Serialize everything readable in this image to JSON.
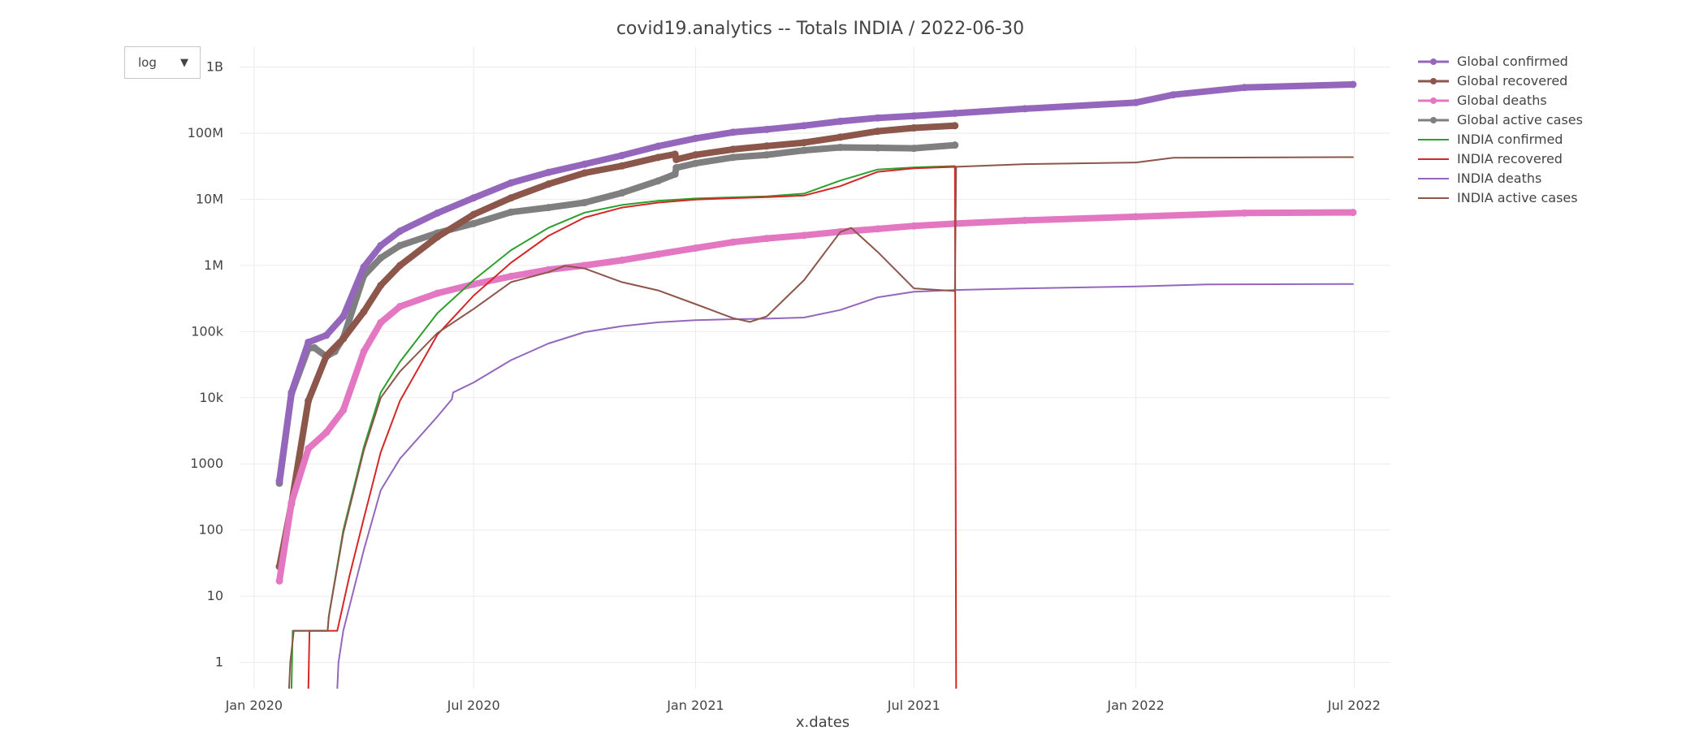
{
  "scale_selector": {
    "value": "log",
    "arrow": "▼"
  },
  "chart_data": {
    "type": "line",
    "title": "covid19.analytics -- Totals  INDIA  /  2022-06-30",
    "xlabel": "x.dates",
    "ylabel": "",
    "y_scale": "log",
    "ylim": [
      0.4,
      2000000000
    ],
    "xlim": [
      "2019-12-20",
      "2022-07-31"
    ],
    "x_ticks": [
      {
        "date": "2020-01-01",
        "label": "Jan 2020"
      },
      {
        "date": "2020-07-01",
        "label": "Jul 2020"
      },
      {
        "date": "2021-01-01",
        "label": "Jan 2021"
      },
      {
        "date": "2021-07-01",
        "label": "Jul 2021"
      },
      {
        "date": "2022-01-01",
        "label": "Jan 2022"
      },
      {
        "date": "2022-07-01",
        "label": "Jul 2022"
      }
    ],
    "y_ticks": [
      {
        "value": 1,
        "label": "1"
      },
      {
        "value": 10,
        "label": "10"
      },
      {
        "value": 100,
        "label": "100"
      },
      {
        "value": 1000,
        "label": "1000"
      },
      {
        "value": 10000,
        "label": "10k"
      },
      {
        "value": 100000,
        "label": "100k"
      },
      {
        "value": 1000000,
        "label": "1M"
      },
      {
        "value": 10000000,
        "label": "10M"
      },
      {
        "value": 100000000,
        "label": "100M"
      },
      {
        "value": 1000000000,
        "label": "1B"
      }
    ],
    "grid": true,
    "legend_position": "top-right",
    "series": [
      {
        "name": "Global confirmed",
        "color": "#9467bd",
        "mode": "lines+markers",
        "points": [
          [
            "2020-01-22",
            555
          ],
          [
            "2020-02-01",
            12000
          ],
          [
            "2020-02-15",
            69000
          ],
          [
            "2020-03-01",
            88000
          ],
          [
            "2020-03-15",
            170000
          ],
          [
            "2020-04-01",
            950000
          ],
          [
            "2020-04-15",
            2000000
          ],
          [
            "2020-05-01",
            3300000
          ],
          [
            "2020-06-01",
            6200000
          ],
          [
            "2020-07-01",
            10500000
          ],
          [
            "2020-08-01",
            17700000
          ],
          [
            "2020-09-01",
            25500000
          ],
          [
            "2020-10-01",
            34000000
          ],
          [
            "2020-11-01",
            46000000
          ],
          [
            "2020-12-01",
            63500000
          ],
          [
            "2021-01-01",
            83500000
          ],
          [
            "2021-02-01",
            103000000
          ],
          [
            "2021-03-01",
            114000000
          ],
          [
            "2021-04-01",
            130000000
          ],
          [
            "2021-05-01",
            151000000
          ],
          [
            "2021-06-01",
            170000000
          ],
          [
            "2021-07-01",
            182000000
          ],
          [
            "2021-08-04",
            200000000
          ],
          [
            "2021-10-01",
            234000000
          ],
          [
            "2022-01-01",
            290000000
          ],
          [
            "2022-02-01",
            380000000
          ],
          [
            "2022-04-01",
            490000000
          ],
          [
            "2022-06-30",
            545000000
          ]
        ]
      },
      {
        "name": "Global recovered",
        "color": "#8c564b",
        "mode": "lines+markers",
        "points": [
          [
            "2020-01-22",
            28
          ],
          [
            "2020-02-01",
            250
          ],
          [
            "2020-02-15",
            9000
          ],
          [
            "2020-03-01",
            43000
          ],
          [
            "2020-03-15",
            78000
          ],
          [
            "2020-04-01",
            200000
          ],
          [
            "2020-04-15",
            500000
          ],
          [
            "2020-05-01",
            1000000
          ],
          [
            "2020-06-01",
            2700000
          ],
          [
            "2020-07-01",
            5900000
          ],
          [
            "2020-08-01",
            10500000
          ],
          [
            "2020-09-01",
            17000000
          ],
          [
            "2020-10-01",
            25000000
          ],
          [
            "2020-11-01",
            32000000
          ],
          [
            "2020-12-01",
            43000000
          ],
          [
            "2020-12-15",
            48000000
          ],
          [
            "2020-12-16",
            40000000
          ],
          [
            "2021-01-01",
            47000000
          ],
          [
            "2021-02-01",
            57000000
          ],
          [
            "2021-03-01",
            64000000
          ],
          [
            "2021-04-01",
            72000000
          ],
          [
            "2021-05-01",
            87000000
          ],
          [
            "2021-06-01",
            107000000
          ],
          [
            "2021-07-01",
            120000000
          ],
          [
            "2021-08-04",
            130000000
          ]
        ]
      },
      {
        "name": "Global deaths",
        "color": "#e377c2",
        "mode": "lines+markers",
        "points": [
          [
            "2020-01-22",
            17
          ],
          [
            "2020-02-01",
            260
          ],
          [
            "2020-02-15",
            1700
          ],
          [
            "2020-03-01",
            3000
          ],
          [
            "2020-03-15",
            6500
          ],
          [
            "2020-04-01",
            50000
          ],
          [
            "2020-04-15",
            137000
          ],
          [
            "2020-05-01",
            240000
          ],
          [
            "2020-06-01",
            380000
          ],
          [
            "2020-07-01",
            520000
          ],
          [
            "2020-08-01",
            685000
          ],
          [
            "2020-09-01",
            860000
          ],
          [
            "2020-10-01",
            1000000
          ],
          [
            "2020-11-01",
            1200000
          ],
          [
            "2020-12-01",
            1480000
          ],
          [
            "2021-01-01",
            1830000
          ],
          [
            "2021-02-01",
            2250000
          ],
          [
            "2021-03-01",
            2560000
          ],
          [
            "2021-04-01",
            2850000
          ],
          [
            "2021-05-01",
            3230000
          ],
          [
            "2021-06-01",
            3570000
          ],
          [
            "2021-07-01",
            3960000
          ],
          [
            "2021-08-04",
            4280000
          ],
          [
            "2021-10-01",
            4800000
          ],
          [
            "2022-01-01",
            5450000
          ],
          [
            "2022-04-01",
            6200000
          ],
          [
            "2022-06-30",
            6330000
          ]
        ]
      },
      {
        "name": "Global active cases",
        "color": "#7f7f7f",
        "mode": "lines+markers",
        "points": [
          [
            "2020-01-22",
            510
          ],
          [
            "2020-02-01",
            11500
          ],
          [
            "2020-02-15",
            56000
          ],
          [
            "2020-02-20",
            57000
          ],
          [
            "2020-03-01",
            42000
          ],
          [
            "2020-03-08",
            50000
          ],
          [
            "2020-03-15",
            80000
          ],
          [
            "2020-04-01",
            700000
          ],
          [
            "2020-04-15",
            1300000
          ],
          [
            "2020-05-01",
            2000000
          ],
          [
            "2020-06-01",
            3100000
          ],
          [
            "2020-07-01",
            4300000
          ],
          [
            "2020-08-01",
            6400000
          ],
          [
            "2020-09-01",
            7500000
          ],
          [
            "2020-10-01",
            8900000
          ],
          [
            "2020-11-01",
            12500000
          ],
          [
            "2020-12-01",
            19000000
          ],
          [
            "2020-12-15",
            24000000
          ],
          [
            "2020-12-16",
            30000000
          ],
          [
            "2021-01-01",
            35000000
          ],
          [
            "2021-02-01",
            43000000
          ],
          [
            "2021-03-01",
            47000000
          ],
          [
            "2021-04-01",
            55000000
          ],
          [
            "2021-05-01",
            61000000
          ],
          [
            "2021-06-01",
            60000000
          ],
          [
            "2021-07-01",
            59000000
          ],
          [
            "2021-08-04",
            66000000
          ]
        ]
      },
      {
        "name": "INDIA confirmed",
        "color": "#2ca02c",
        "mode": "lines",
        "points": [
          [
            "2020-02-01",
            0.4
          ],
          [
            "2020-02-02",
            3
          ],
          [
            "2020-03-02",
            3
          ],
          [
            "2020-03-03",
            5
          ],
          [
            "2020-03-15",
            100
          ],
          [
            "2020-04-01",
            1800
          ],
          [
            "2020-04-15",
            12000
          ],
          [
            "2020-05-01",
            35000
          ],
          [
            "2020-06-01",
            190000
          ],
          [
            "2020-07-01",
            600000
          ],
          [
            "2020-08-01",
            1700000
          ],
          [
            "2020-09-01",
            3700000
          ],
          [
            "2020-10-01",
            6300000
          ],
          [
            "2020-11-01",
            8200000
          ],
          [
            "2020-12-01",
            9500000
          ],
          [
            "2021-01-01",
            10300000
          ],
          [
            "2021-02-01",
            10700000
          ],
          [
            "2021-03-01",
            11100000
          ],
          [
            "2021-04-01",
            12200000
          ],
          [
            "2021-05-01",
            19200000
          ],
          [
            "2021-06-01",
            28200000
          ],
          [
            "2021-07-01",
            30400000
          ],
          [
            "2021-08-04",
            31800000
          ]
        ]
      },
      {
        "name": "INDIA recovered",
        "color": "#d62728",
        "mode": "lines",
        "points": [
          [
            "2020-02-15",
            0.4
          ],
          [
            "2020-02-16",
            3
          ],
          [
            "2020-03-10",
            3
          ],
          [
            "2020-03-20",
            20
          ],
          [
            "2020-04-01",
            150
          ],
          [
            "2020-04-15",
            1500
          ],
          [
            "2020-05-01",
            9000
          ],
          [
            "2020-06-01",
            90000
          ],
          [
            "2020-07-01",
            350000
          ],
          [
            "2020-08-01",
            1100000
          ],
          [
            "2020-09-01",
            2800000
          ],
          [
            "2020-10-01",
            5300000
          ],
          [
            "2020-11-01",
            7500000
          ],
          [
            "2020-12-01",
            8900000
          ],
          [
            "2021-01-01",
            9900000
          ],
          [
            "2021-02-01",
            10400000
          ],
          [
            "2021-03-01",
            10800000
          ],
          [
            "2021-04-01",
            11400000
          ],
          [
            "2021-05-01",
            15800000
          ],
          [
            "2021-06-01",
            26000000
          ],
          [
            "2021-07-01",
            29500000
          ],
          [
            "2021-08-04",
            30900000
          ],
          [
            "2021-08-05",
            0.4
          ]
        ]
      },
      {
        "name": "INDIA deaths",
        "color": "#9467bd",
        "mode": "lines",
        "points": [
          [
            "2020-03-10",
            0.4
          ],
          [
            "2020-03-11",
            1
          ],
          [
            "2020-03-15",
            3
          ],
          [
            "2020-04-01",
            50
          ],
          [
            "2020-04-15",
            400
          ],
          [
            "2020-05-01",
            1200
          ],
          [
            "2020-06-01",
            5200
          ],
          [
            "2020-06-13",
            9500
          ],
          [
            "2020-06-14",
            12000
          ],
          [
            "2020-07-01",
            17000
          ],
          [
            "2020-08-01",
            37000
          ],
          [
            "2020-09-01",
            66000
          ],
          [
            "2020-10-01",
            98000
          ],
          [
            "2020-11-01",
            121000
          ],
          [
            "2020-12-01",
            138000
          ],
          [
            "2021-01-01",
            149000
          ],
          [
            "2021-02-01",
            154000
          ],
          [
            "2021-03-01",
            157000
          ],
          [
            "2021-04-01",
            163000
          ],
          [
            "2021-05-01",
            212000
          ],
          [
            "2021-06-01",
            330000
          ],
          [
            "2021-07-01",
            400000
          ],
          [
            "2021-08-04",
            425000
          ],
          [
            "2021-10-01",
            450000
          ],
          [
            "2022-01-01",
            482000
          ],
          [
            "2022-03-01",
            515000
          ],
          [
            "2022-06-30",
            525000
          ]
        ]
      },
      {
        "name": "INDIA active cases",
        "color": "#8c564b",
        "mode": "lines",
        "points": [
          [
            "2020-01-30",
            0.4
          ],
          [
            "2020-01-31",
            1
          ],
          [
            "2020-02-03",
            3
          ],
          [
            "2020-03-02",
            3
          ],
          [
            "2020-03-03",
            5
          ],
          [
            "2020-03-15",
            90
          ],
          [
            "2020-04-01",
            1600
          ],
          [
            "2020-04-15",
            10000
          ],
          [
            "2020-05-01",
            25000
          ],
          [
            "2020-06-01",
            95000
          ],
          [
            "2020-07-01",
            220000
          ],
          [
            "2020-08-01",
            560000
          ],
          [
            "2020-09-01",
            790000
          ],
          [
            "2020-09-15",
            990000
          ],
          [
            "2020-10-01",
            900000
          ],
          [
            "2020-11-01",
            560000
          ],
          [
            "2020-12-01",
            420000
          ],
          [
            "2021-01-01",
            260000
          ],
          [
            "2021-02-01",
            160000
          ],
          [
            "2021-02-15",
            140000
          ],
          [
            "2021-03-01",
            170000
          ],
          [
            "2021-04-01",
            600000
          ],
          [
            "2021-05-01",
            3200000
          ],
          [
            "2021-05-10",
            3700000
          ],
          [
            "2021-06-01",
            1600000
          ],
          [
            "2021-07-01",
            450000
          ],
          [
            "2021-08-04",
            410000
          ],
          [
            "2021-08-05",
            31000000
          ],
          [
            "2021-10-01",
            34000000
          ],
          [
            "2022-01-01",
            36000000
          ],
          [
            "2022-02-01",
            42500000
          ],
          [
            "2022-06-30",
            43400000
          ]
        ]
      }
    ]
  }
}
